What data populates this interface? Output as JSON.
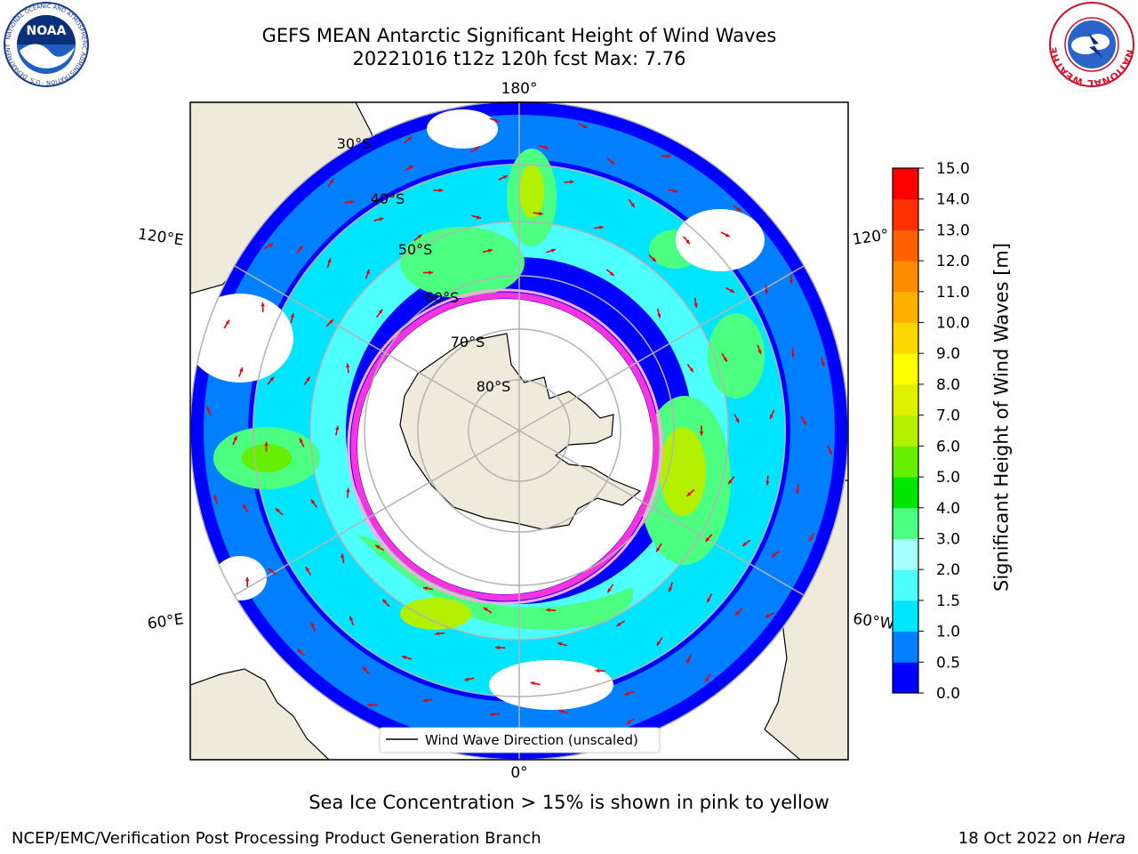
{
  "title_line1": "GEFS MEAN Antarctic Significant Height of Wind Waves",
  "title_line2": "20221016 t12z 120h fcst   Max: 7.76",
  "logos": {
    "left": {
      "icon": "noaa-logo",
      "text": "NOAA",
      "ring_text": "NATIONAL OCEANIC AND ATMOSPHERIC ADMINISTRATION · U.S. DEPARTMENT OF COMMERCE"
    },
    "right": {
      "icon": "national-weather-service-logo",
      "ring_text": "NATIONAL WEATHER SERVICE"
    }
  },
  "map": {
    "projection": "south-polar-stereographic",
    "longitude_labels": {
      "top": "180°",
      "bottom": "0°",
      "upper_left": "120°E",
      "lower_left": "60°E",
      "upper_right": "120°",
      "lower_right": "60°W"
    },
    "latitude_labels": [
      "30°S",
      "40°S",
      "50°S",
      "60°S",
      "70°S",
      "80°S"
    ],
    "legend_label": "Wind Wave Direction (unscaled)",
    "arrow_color": "#e8000b",
    "land_color": "#efebdc"
  },
  "colorbar": {
    "label": "Significant Height of Wind Waves [m]",
    "ticks": [
      "0.0",
      "0.5",
      "1.0",
      "1.5",
      "2.0",
      "3.0",
      "4.0",
      "5.0",
      "6.0",
      "7.0",
      "8.0",
      "9.0",
      "10.0",
      "11.0",
      "12.0",
      "13.0",
      "14.0",
      "15.0"
    ],
    "colors": [
      "#0000ff",
      "#0080ff",
      "#00e5ff",
      "#4dffff",
      "#a6ffff",
      "#4dff80",
      "#00e600",
      "#66ee00",
      "#b3f000",
      "#dcf000",
      "#ffff00",
      "#ffd700",
      "#ffb000",
      "#ff8c00",
      "#ff6000",
      "#ff3000",
      "#ff0000"
    ]
  },
  "note": "Sea Ice Concentration > 15% is shown in pink to yellow",
  "footer_left": "NCEP/EMC/Verification Post Processing Product Generation Branch",
  "footer_date": "18 Oct 2022 on ",
  "footer_host": "Hera"
}
